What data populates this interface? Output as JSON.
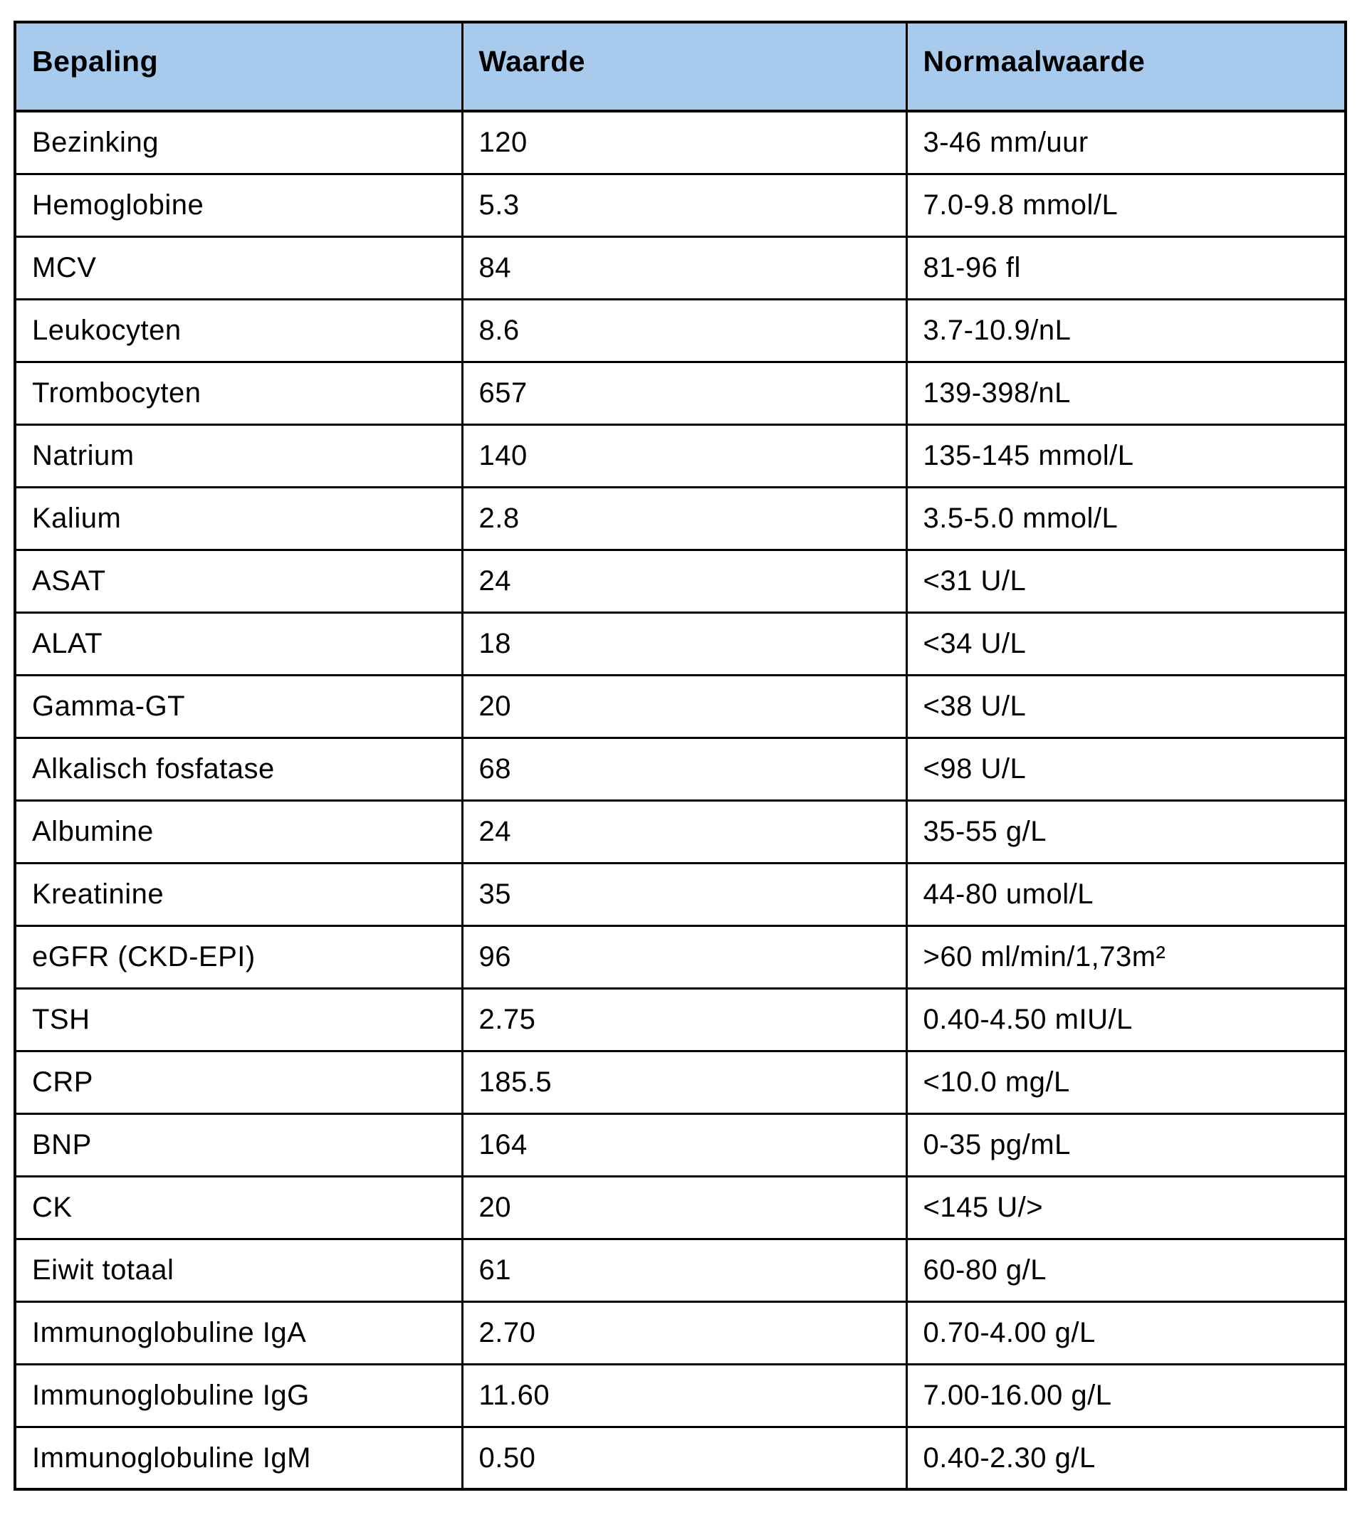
{
  "table": {
    "header_bg": "#A8CAEC",
    "border_color": "#000000",
    "headers": [
      "Bepaling",
      "Waarde",
      "Normaalwaarde"
    ],
    "rows": [
      [
        "Bezinking",
        "120",
        "3-46 mm/uur"
      ],
      [
        "Hemoglobine",
        "5.3",
        "7.0-9.8 mmol/L"
      ],
      [
        "MCV",
        "84",
        "81-96 fl"
      ],
      [
        "Leukocyten",
        "8.6",
        "3.7-10.9/nL"
      ],
      [
        "Trombocyten",
        "657",
        "139-398/nL"
      ],
      [
        "Natrium",
        "140",
        "135-145 mmol/L"
      ],
      [
        "Kalium",
        "2.8",
        "3.5-5.0 mmol/L"
      ],
      [
        "ASAT",
        "24",
        "<31 U/L"
      ],
      [
        "ALAT",
        "18",
        "<34 U/L"
      ],
      [
        "Gamma-GT",
        "20",
        "<38 U/L"
      ],
      [
        "Alkalisch fosfatase",
        "68",
        "<98 U/L"
      ],
      [
        "Albumine",
        "24",
        "35-55 g/L"
      ],
      [
        "Kreatinine",
        "35",
        "44-80 umol/L"
      ],
      [
        "eGFR (CKD-EPI)",
        "96",
        ">60 ml/min/1,73m²"
      ],
      [
        "TSH",
        "2.75",
        "0.40-4.50 mIU/L"
      ],
      [
        "CRP",
        "185.5",
        "<10.0 mg/L"
      ],
      [
        "BNP",
        "164",
        "0-35 pg/mL"
      ],
      [
        "CK",
        "20",
        "<145 U/>"
      ],
      [
        "Eiwit totaal",
        "61",
        "60-80 g/L"
      ],
      [
        "Immunoglobuline IgA",
        "2.70",
        "0.70-4.00 g/L"
      ],
      [
        "Immunoglobuline IgG",
        "11.60",
        "7.00-16.00 g/L"
      ],
      [
        "Immunoglobuline IgM",
        "0.50",
        "0.40-2.30 g/L"
      ]
    ]
  }
}
